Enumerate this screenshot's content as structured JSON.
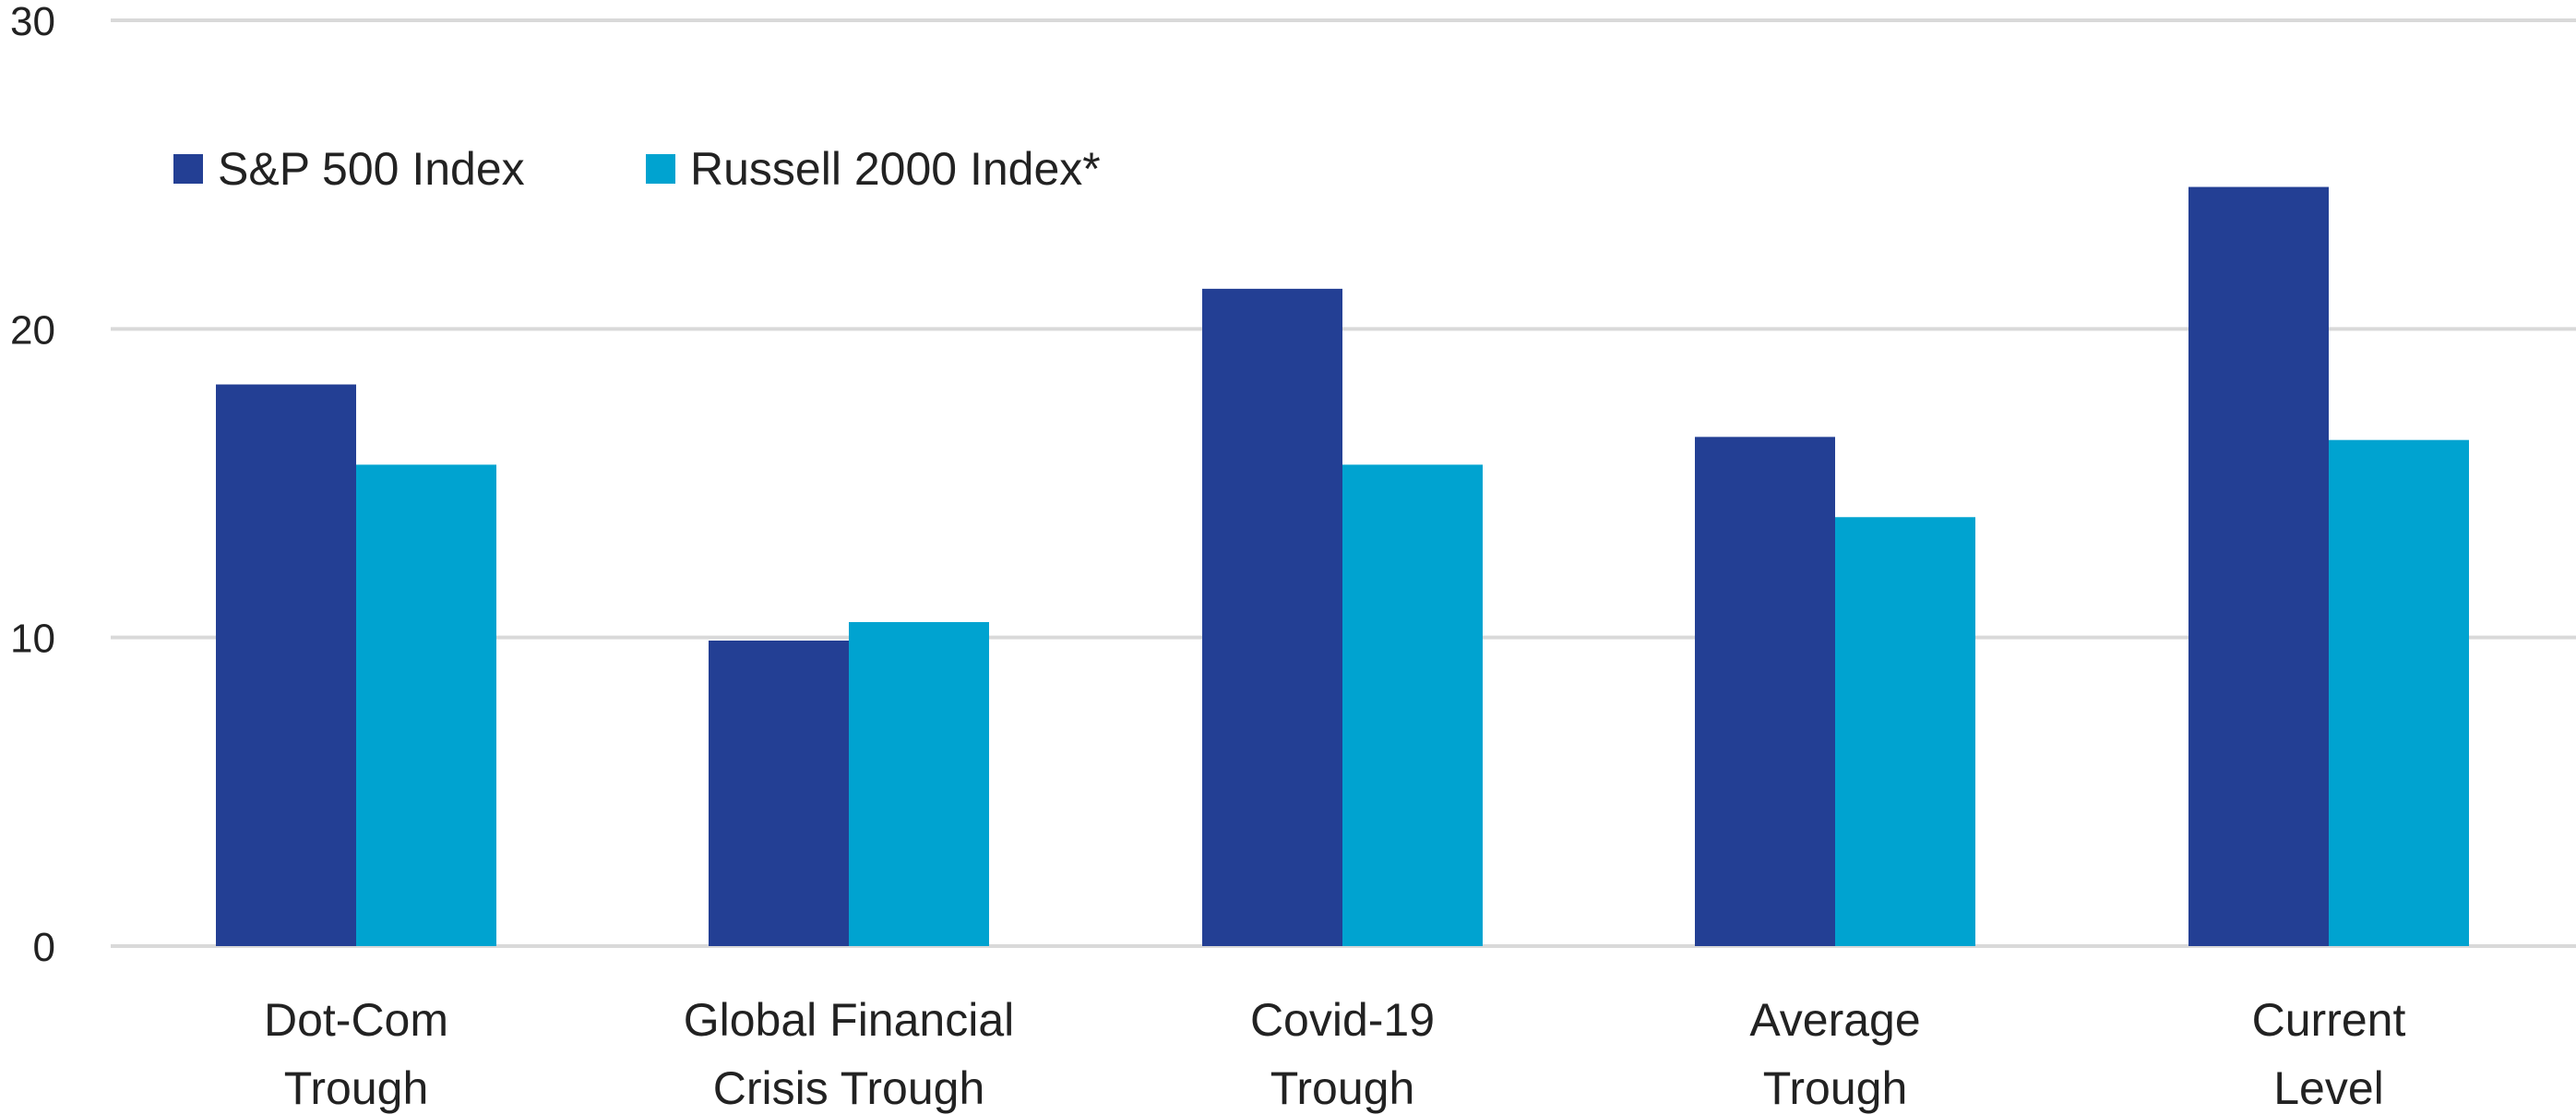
{
  "chart_data": {
    "type": "bar",
    "title": "",
    "xlabel": "",
    "ylabel": "",
    "ylim": [
      0,
      30
    ],
    "yticks": [
      0,
      10,
      20,
      30
    ],
    "grid": true,
    "legend_position": "top-left",
    "categories": [
      [
        "Dot-Com",
        "Trough"
      ],
      [
        "Global Financial",
        "Crisis Trough"
      ],
      [
        "Covid-19",
        "Trough"
      ],
      [
        "Average",
        "Trough"
      ],
      [
        "Current",
        "Level"
      ]
    ],
    "series": [
      {
        "name": "S&P 500 Index",
        "color": "#233f94",
        "values": [
          18.2,
          9.9,
          21.3,
          16.5,
          24.6
        ]
      },
      {
        "name": "Russell 2000 Index*",
        "color": "#00a3d0",
        "values": [
          15.6,
          10.5,
          15.6,
          13.9,
          16.4
        ]
      }
    ]
  }
}
